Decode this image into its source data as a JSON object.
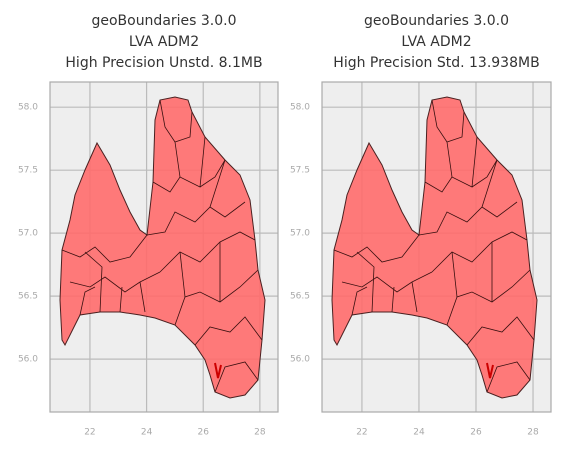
{
  "chart_data": [
    {
      "type": "map",
      "title": [
        "geoBoundaries 3.0.0",
        "LVA ADM2",
        "High Precision Unstd. 8.1MB"
      ],
      "xlim": [
        20.59,
        28.64
      ],
      "ylim": [
        55.58,
        58.2
      ],
      "xticks": [
        22,
        24,
        26,
        28
      ],
      "yticks": [
        {
          "value": 58,
          "label": "58.0"
        },
        57.5,
        {
          "value": 57,
          "label": "57.0"
        },
        56.5,
        {
          "value": 56,
          "label": "56.0"
        }
      ],
      "grid": true,
      "color": "#ff6b6b"
    },
    {
      "type": "map",
      "title": [
        "geoBoundaries 3.0.0",
        "LVA ADM2",
        "High Precision Std. 13.938MB"
      ],
      "xlim": [
        20.6,
        28.63
      ],
      "ylim": [
        55.58,
        58.2
      ],
      "xticks": [
        22,
        24,
        26,
        28
      ],
      "yticks": [
        {
          "value": 58,
          "label": "58.0"
        },
        57.5,
        {
          "value": 57,
          "label": "57.0"
        },
        56.5,
        {
          "value": 56,
          "label": "56.0"
        }
      ],
      "grid": true,
      "color": "#ff6b6b"
    }
  ]
}
